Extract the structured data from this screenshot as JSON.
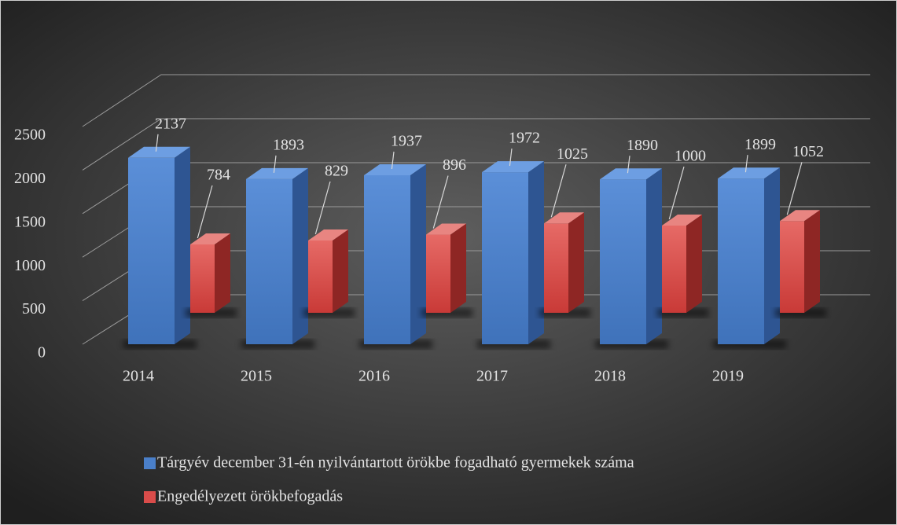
{
  "chart_data": {
    "type": "bar3d",
    "categories": [
      "2014",
      "2015",
      "2016",
      "2017",
      "2018",
      "2019"
    ],
    "series": [
      {
        "name": "Tárgyév december 31-én nyilvántartott örökbe fogadható gyermekek száma",
        "color": "#4a7fc9",
        "values": [
          2137,
          1893,
          1937,
          1972,
          1890,
          1899
        ]
      },
      {
        "name": "Engedélyezett örökbefogadás",
        "color": "#d94c4a",
        "values": [
          784,
          829,
          896,
          1025,
          1000,
          1052
        ]
      }
    ],
    "ylim": [
      0,
      2500
    ],
    "yticks": [
      0,
      500,
      1000,
      1500,
      2000,
      2500
    ],
    "grid": true,
    "legend": "bottom"
  }
}
